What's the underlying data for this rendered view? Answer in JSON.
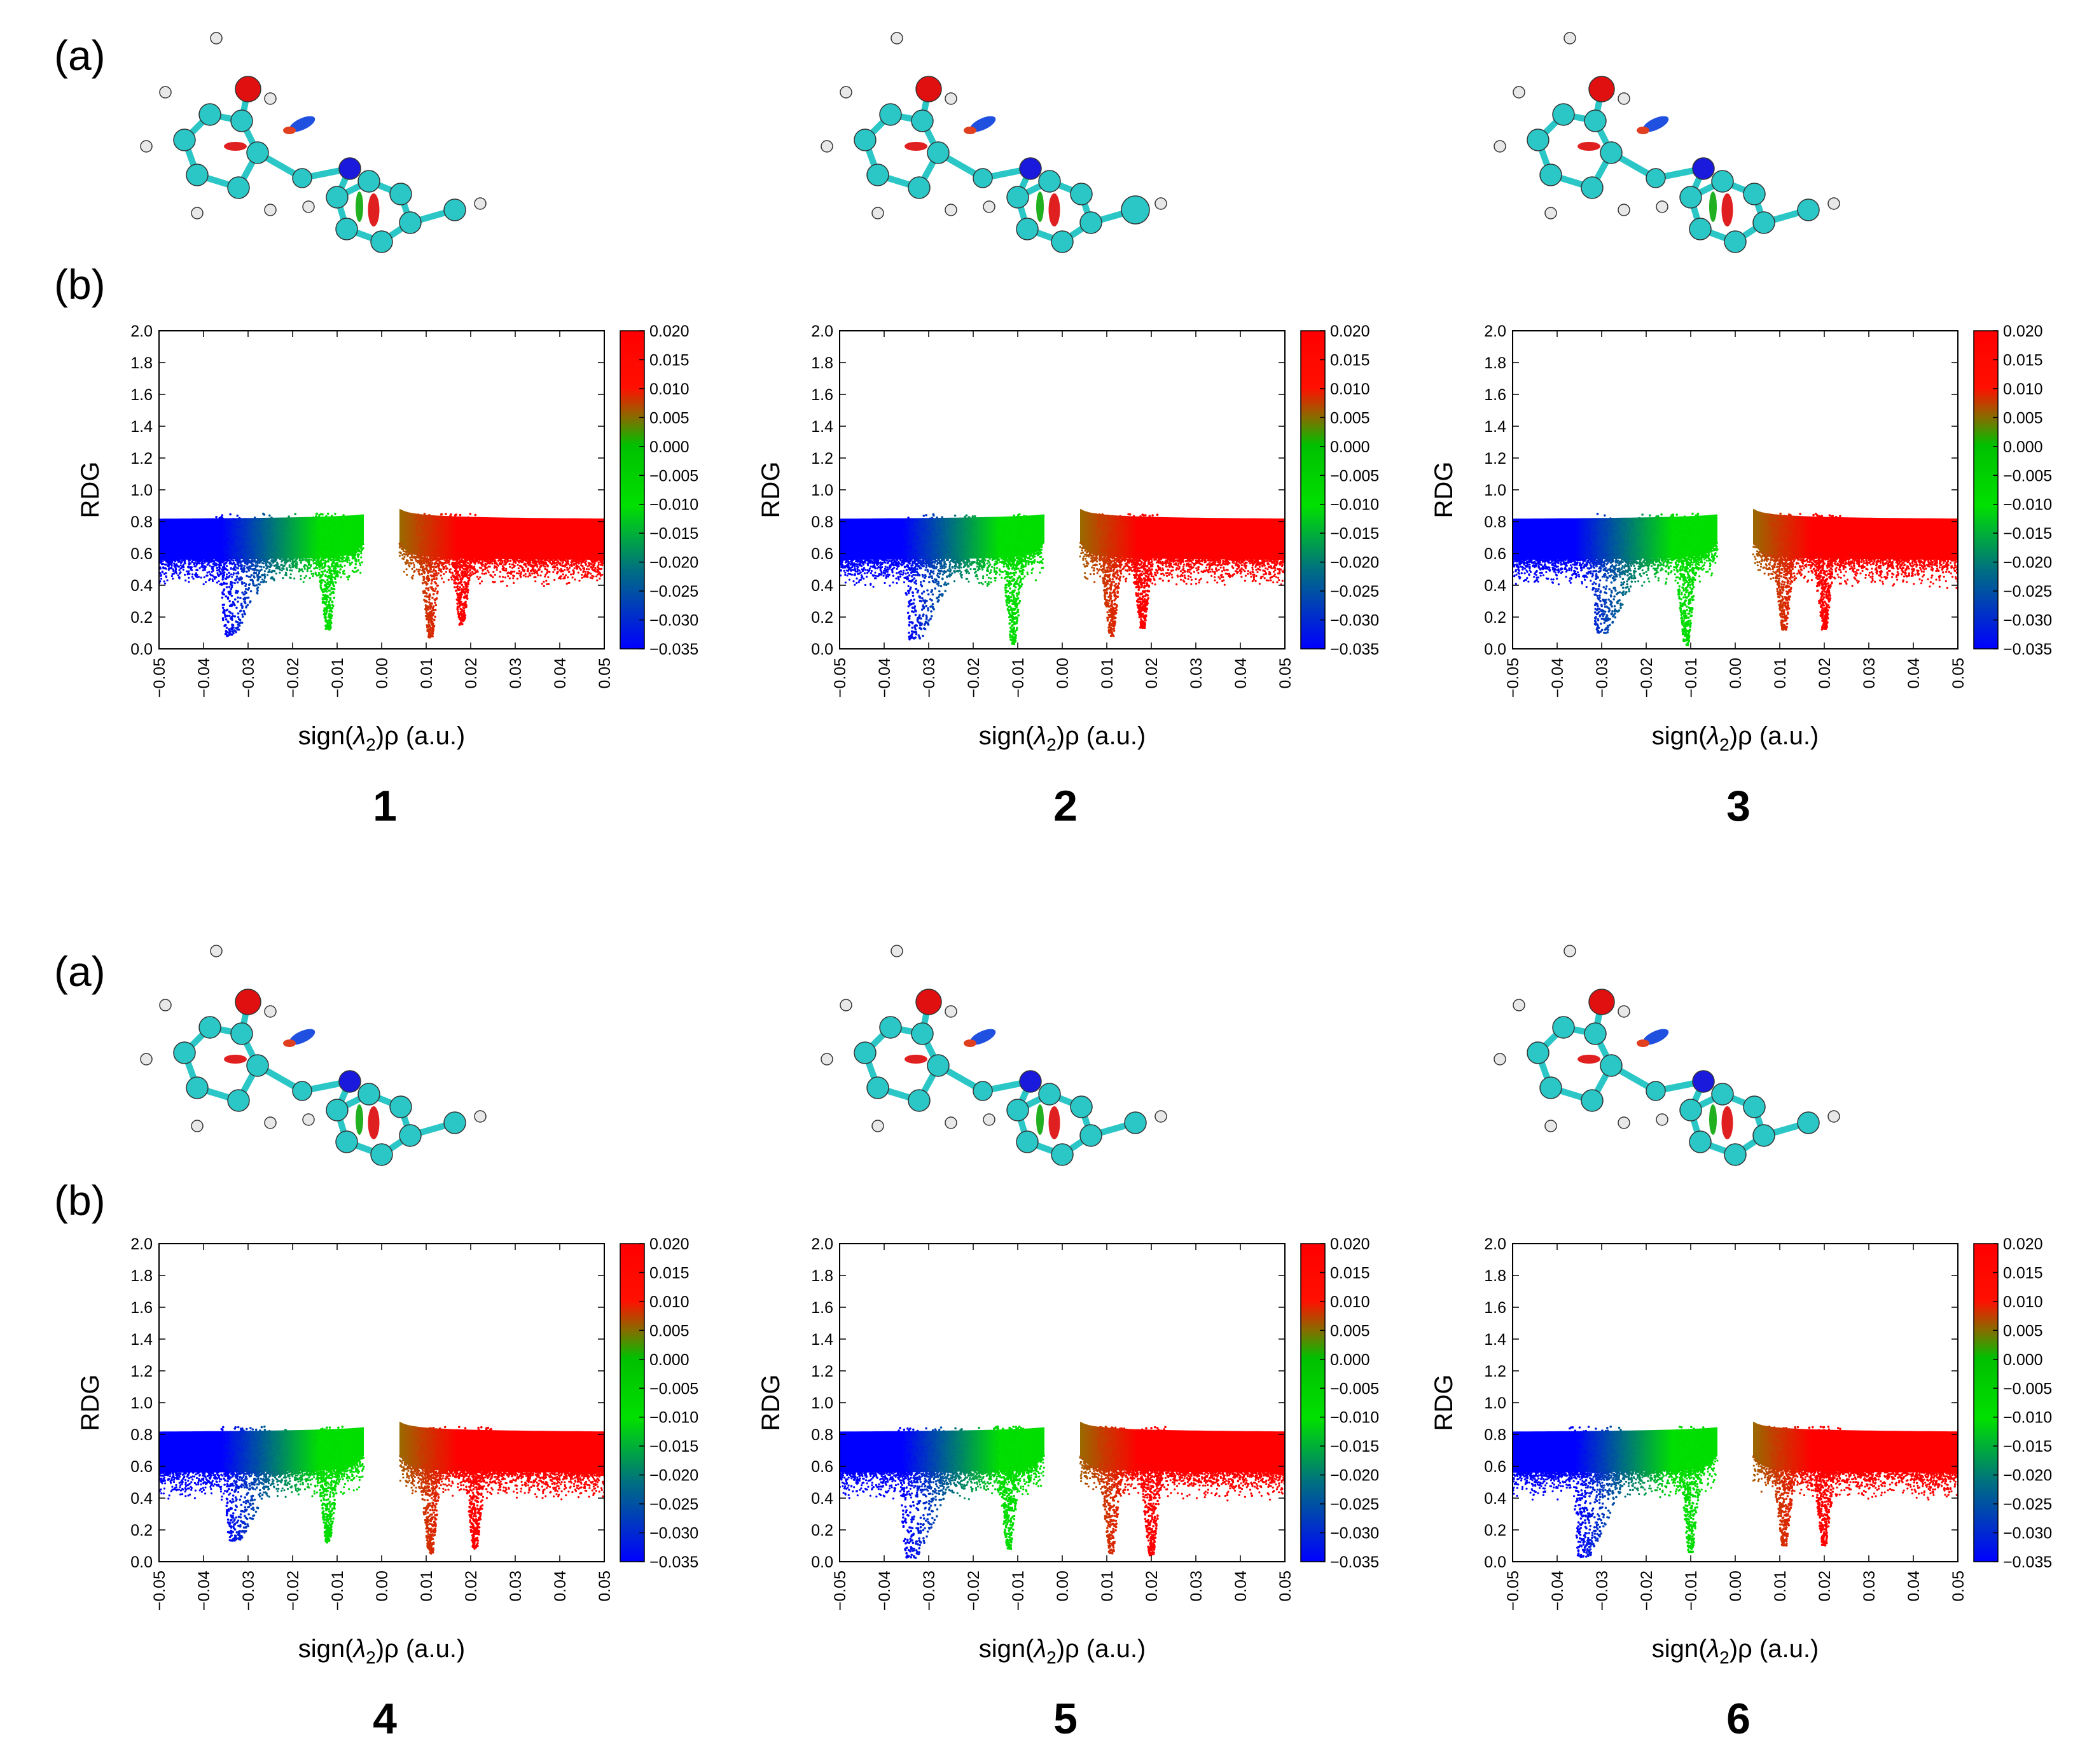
{
  "panel_labels": {
    "a": "(a)",
    "b": "(b)"
  },
  "axis": {
    "xlabel": "sign(λ2)ρ (a.u.)",
    "xlabel_pre": "sign(",
    "xlabel_sym": "λ",
    "xlabel_sub": "2",
    "xlabel_post": ")ρ (a.u.)",
    "ylabel": "RDG",
    "xticks": [
      "-0.05",
      "-0.04",
      "-0.03",
      "-0.02",
      "-0.01",
      "0.00",
      "0.01",
      "0.02",
      "0.03",
      "0.04",
      "0.05"
    ],
    "yticks": [
      "0.0",
      "0.2",
      "0.4",
      "0.6",
      "0.8",
      "1.0",
      "1.2",
      "1.4",
      "1.6",
      "1.8",
      "2.0"
    ],
    "colorbar_ticks": [
      "0.020",
      "0.015",
      "0.010",
      "0.005",
      "0.000",
      "-0.005",
      "-0.010",
      "-0.015",
      "-0.020",
      "-0.025",
      "-0.030",
      "-0.035"
    ]
  },
  "colors": {
    "carbon": "#2bc6c6",
    "oxygen": "#e01010",
    "nitrogen": "#1a1adc",
    "hydrogen": "#e8e8e8",
    "bond": "#2bc6c6",
    "colormap": [
      "#0000ff",
      "#00dd00",
      "#ff0000"
    ]
  },
  "chart_data": [
    {
      "type": "scatter",
      "compound": "1",
      "xlabel": "sign(λ2)ρ (a.u.)",
      "ylabel": "RDG",
      "xlim": [
        -0.05,
        0.05
      ],
      "ylim": [
        0.0,
        2.0
      ],
      "colorbar_range": [
        -0.035,
        0.02
      ],
      "spike_minima_x": [
        -0.034,
        -0.012,
        0.011,
        0.018
      ],
      "spike_minima_rdg": [
        0.08,
        0.12,
        0.07,
        0.15
      ]
    },
    {
      "type": "scatter",
      "compound": "2",
      "xlabel": "sign(λ2)ρ (a.u.)",
      "ylabel": "RDG",
      "xlim": [
        -0.05,
        0.05
      ],
      "ylim": [
        0.0,
        2.0
      ],
      "colorbar_range": [
        -0.035,
        0.02
      ],
      "spike_minima_x": [
        -0.033,
        -0.011,
        0.011,
        0.018
      ],
      "spike_minima_rdg": [
        0.06,
        0.03,
        0.08,
        0.13
      ]
    },
    {
      "type": "scatter",
      "compound": "3",
      "xlabel": "sign(λ2)ρ (a.u.)",
      "ylabel": "RDG",
      "xlim": [
        -0.05,
        0.05
      ],
      "ylim": [
        0.0,
        2.0
      ],
      "colorbar_range": [
        -0.035,
        0.02
      ],
      "spike_minima_x": [
        -0.03,
        -0.011,
        0.011,
        0.02
      ],
      "spike_minima_rdg": [
        0.1,
        0.02,
        0.12,
        0.12
      ]
    },
    {
      "type": "scatter",
      "compound": "4",
      "xlabel": "sign(λ2)ρ (a.u.)",
      "ylabel": "RDG",
      "xlim": [
        -0.05,
        0.05
      ],
      "ylim": [
        0.0,
        2.0
      ],
      "colorbar_range": [
        -0.035,
        0.02
      ],
      "spike_minima_x": [
        -0.033,
        -0.012,
        0.011,
        0.021
      ],
      "spike_minima_rdg": [
        0.13,
        0.12,
        0.05,
        0.08
      ]
    },
    {
      "type": "scatter",
      "compound": "5",
      "xlabel": "sign(λ2)ρ (a.u.)",
      "ylabel": "RDG",
      "xlim": [
        -0.05,
        0.05
      ],
      "ylim": [
        0.0,
        2.0
      ],
      "colorbar_range": [
        -0.035,
        0.02
      ],
      "spike_minima_x": [
        -0.034,
        -0.012,
        0.011,
        0.02
      ],
      "spike_minima_rdg": [
        0.02,
        0.08,
        0.05,
        0.04
      ]
    },
    {
      "type": "scatter",
      "compound": "6",
      "xlabel": "sign(λ2)ρ (a.u.)",
      "ylabel": "RDG",
      "xlim": [
        -0.05,
        0.05
      ],
      "ylim": [
        0.0,
        2.0
      ],
      "colorbar_range": [
        -0.035,
        0.02
      ],
      "spike_minima_x": [
        -0.034,
        -0.01,
        0.011,
        0.02
      ],
      "spike_minima_rdg": [
        0.03,
        0.06,
        0.1,
        0.1
      ]
    }
  ]
}
